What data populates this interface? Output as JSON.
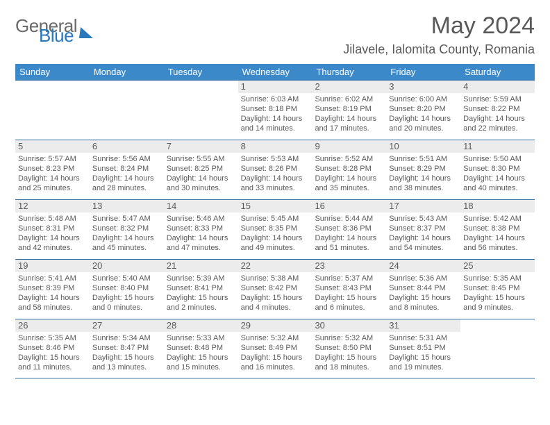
{
  "logo": {
    "line1": "General",
    "line2": "Blue"
  },
  "title": "May 2024",
  "location": "Jilavele, Ialomita County, Romania",
  "weekdays": [
    "Sunday",
    "Monday",
    "Tuesday",
    "Wednesday",
    "Thursday",
    "Friday",
    "Saturday"
  ],
  "colors": {
    "header_bg": "#3b89c9",
    "border": "#2f6ea5",
    "daynum_bg": "#ececec",
    "text": "#5a5a5a",
    "title_text": "#595959",
    "logo_gray": "#6a6a6a",
    "logo_blue": "#2878bd"
  },
  "weeks": [
    [
      null,
      null,
      null,
      {
        "n": "1",
        "sr": "6:03 AM",
        "ss": "8:18 PM",
        "dl": "14 hours and 14 minutes."
      },
      {
        "n": "2",
        "sr": "6:02 AM",
        "ss": "8:19 PM",
        "dl": "14 hours and 17 minutes."
      },
      {
        "n": "3",
        "sr": "6:00 AM",
        "ss": "8:20 PM",
        "dl": "14 hours and 20 minutes."
      },
      {
        "n": "4",
        "sr": "5:59 AM",
        "ss": "8:22 PM",
        "dl": "14 hours and 22 minutes."
      }
    ],
    [
      {
        "n": "5",
        "sr": "5:57 AM",
        "ss": "8:23 PM",
        "dl": "14 hours and 25 minutes."
      },
      {
        "n": "6",
        "sr": "5:56 AM",
        "ss": "8:24 PM",
        "dl": "14 hours and 28 minutes."
      },
      {
        "n": "7",
        "sr": "5:55 AM",
        "ss": "8:25 PM",
        "dl": "14 hours and 30 minutes."
      },
      {
        "n": "8",
        "sr": "5:53 AM",
        "ss": "8:26 PM",
        "dl": "14 hours and 33 minutes."
      },
      {
        "n": "9",
        "sr": "5:52 AM",
        "ss": "8:28 PM",
        "dl": "14 hours and 35 minutes."
      },
      {
        "n": "10",
        "sr": "5:51 AM",
        "ss": "8:29 PM",
        "dl": "14 hours and 38 minutes."
      },
      {
        "n": "11",
        "sr": "5:50 AM",
        "ss": "8:30 PM",
        "dl": "14 hours and 40 minutes."
      }
    ],
    [
      {
        "n": "12",
        "sr": "5:48 AM",
        "ss": "8:31 PM",
        "dl": "14 hours and 42 minutes."
      },
      {
        "n": "13",
        "sr": "5:47 AM",
        "ss": "8:32 PM",
        "dl": "14 hours and 45 minutes."
      },
      {
        "n": "14",
        "sr": "5:46 AM",
        "ss": "8:33 PM",
        "dl": "14 hours and 47 minutes."
      },
      {
        "n": "15",
        "sr": "5:45 AM",
        "ss": "8:35 PM",
        "dl": "14 hours and 49 minutes."
      },
      {
        "n": "16",
        "sr": "5:44 AM",
        "ss": "8:36 PM",
        "dl": "14 hours and 51 minutes."
      },
      {
        "n": "17",
        "sr": "5:43 AM",
        "ss": "8:37 PM",
        "dl": "14 hours and 54 minutes."
      },
      {
        "n": "18",
        "sr": "5:42 AM",
        "ss": "8:38 PM",
        "dl": "14 hours and 56 minutes."
      }
    ],
    [
      {
        "n": "19",
        "sr": "5:41 AM",
        "ss": "8:39 PM",
        "dl": "14 hours and 58 minutes."
      },
      {
        "n": "20",
        "sr": "5:40 AM",
        "ss": "8:40 PM",
        "dl": "15 hours and 0 minutes."
      },
      {
        "n": "21",
        "sr": "5:39 AM",
        "ss": "8:41 PM",
        "dl": "15 hours and 2 minutes."
      },
      {
        "n": "22",
        "sr": "5:38 AM",
        "ss": "8:42 PM",
        "dl": "15 hours and 4 minutes."
      },
      {
        "n": "23",
        "sr": "5:37 AM",
        "ss": "8:43 PM",
        "dl": "15 hours and 6 minutes."
      },
      {
        "n": "24",
        "sr": "5:36 AM",
        "ss": "8:44 PM",
        "dl": "15 hours and 8 minutes."
      },
      {
        "n": "25",
        "sr": "5:35 AM",
        "ss": "8:45 PM",
        "dl": "15 hours and 9 minutes."
      }
    ],
    [
      {
        "n": "26",
        "sr": "5:35 AM",
        "ss": "8:46 PM",
        "dl": "15 hours and 11 minutes."
      },
      {
        "n": "27",
        "sr": "5:34 AM",
        "ss": "8:47 PM",
        "dl": "15 hours and 13 minutes."
      },
      {
        "n": "28",
        "sr": "5:33 AM",
        "ss": "8:48 PM",
        "dl": "15 hours and 15 minutes."
      },
      {
        "n": "29",
        "sr": "5:32 AM",
        "ss": "8:49 PM",
        "dl": "15 hours and 16 minutes."
      },
      {
        "n": "30",
        "sr": "5:32 AM",
        "ss": "8:50 PM",
        "dl": "15 hours and 18 minutes."
      },
      {
        "n": "31",
        "sr": "5:31 AM",
        "ss": "8:51 PM",
        "dl": "15 hours and 19 minutes."
      },
      null
    ]
  ],
  "labels": {
    "sunrise": "Sunrise: ",
    "sunset": "Sunset: ",
    "daylight": "Daylight: "
  }
}
